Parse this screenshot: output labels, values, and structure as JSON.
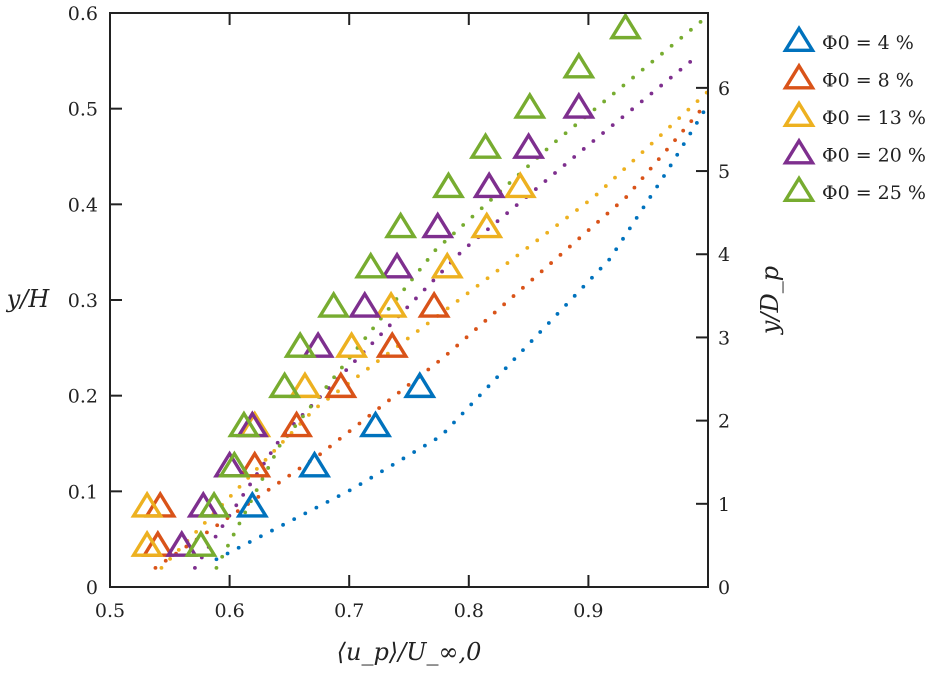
{
  "chart_data": {
    "type": "scatter",
    "title": "",
    "xlabel": "⟨u_p⟩/U_∞,0",
    "ylabel": "y/H",
    "ylabel_right": "y/D_p",
    "xlim": [
      0.5,
      1.0
    ],
    "ylim": [
      0,
      0.6
    ],
    "ylim_right": [
      0,
      6.9
    ],
    "xticks": [
      "0.5",
      "0.6",
      "0.7",
      "0.8",
      "0.9"
    ],
    "yticks": [
      "0",
      "0.1",
      "0.2",
      "0.3",
      "0.4",
      "0.5",
      "0.6"
    ],
    "yticks_right": [
      "0",
      "1",
      "2",
      "3",
      "4",
      "5",
      "6"
    ],
    "grid": false,
    "legend_position": "outside-right-top",
    "marker": "open-triangle",
    "series": [
      {
        "name": "Φ0 = 4 %",
        "color": "#0072BD",
        "x": [
          0.619,
          0.671,
          0.722,
          0.759
        ],
        "y": [
          0.083,
          0.125,
          0.167,
          0.208
        ],
        "fit_x": [
          0.589,
          0.702,
          0.777,
          0.918,
          0.966,
          0.998
        ],
        "fit_y": [
          0.029,
          0.102,
          0.158,
          0.343,
          0.435,
          0.5
        ]
      },
      {
        "name": "Φ0 = 8 %",
        "color": "#D95319",
        "x": [
          0.54,
          0.542,
          0.621,
          0.656,
          0.693,
          0.736,
          0.771
        ],
        "y": [
          0.042,
          0.083,
          0.125,
          0.167,
          0.208,
          0.25,
          0.292
        ],
        "fit_x": [
          0.538,
          0.676,
          0.779,
          0.932,
          0.995
        ],
        "fit_y": [
          0.02,
          0.139,
          0.24,
          0.408,
          0.5
        ]
      },
      {
        "name": "Φ0 = 13 %",
        "color": "#EDB120",
        "x": [
          0.531,
          0.531,
          0.621,
          0.663,
          0.702,
          0.735,
          0.782,
          0.815,
          0.843
        ],
        "y": [
          0.042,
          0.083,
          0.167,
          0.208,
          0.25,
          0.292,
          0.333,
          0.375,
          0.417
        ],
        "fit_x": [
          0.543,
          0.671,
          0.817,
          0.905,
          1.0
        ],
        "fit_y": [
          0.02,
          0.186,
          0.324,
          0.408,
          0.518
        ]
      },
      {
        "name": "Φ0 = 20 %",
        "color": "#7E2F8E",
        "x": [
          0.56,
          0.578,
          0.6,
          0.619,
          0.674,
          0.713,
          0.74,
          0.774,
          0.817,
          0.85,
          0.892
        ],
        "y": [
          0.042,
          0.083,
          0.125,
          0.167,
          0.25,
          0.292,
          0.333,
          0.375,
          0.417,
          0.458,
          0.5
        ],
        "fit_x": [
          0.571,
          0.644,
          0.795,
          0.901,
          0.991
        ],
        "fit_y": [
          0.02,
          0.158,
          0.352,
          0.463,
          0.555
        ]
      },
      {
        "name": "Φ0 = 25 %",
        "color": "#77AC30",
        "x": [
          0.576,
          0.587,
          0.604,
          0.612,
          0.646,
          0.659,
          0.687,
          0.718,
          0.743,
          0.783,
          0.814,
          0.851,
          0.892,
          0.931
        ],
        "y": [
          0.042,
          0.083,
          0.125,
          0.167,
          0.208,
          0.25,
          0.292,
          0.333,
          0.375,
          0.417,
          0.458,
          0.5,
          0.542,
          0.583
        ],
        "fit_x": [
          0.589,
          0.642,
          0.772,
          0.87,
          0.995
        ],
        "fit_y": [
          0.02,
          0.148,
          0.352,
          0.463,
          0.592
        ]
      }
    ]
  }
}
